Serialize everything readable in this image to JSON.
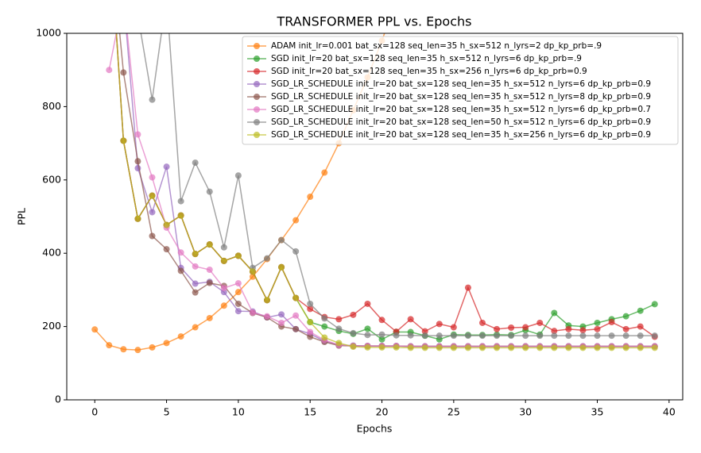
{
  "chart_data": {
    "type": "line",
    "title": "TRANSFORMER PPL vs. Epochs",
    "x_label": "Epochs",
    "y_label": "PPL",
    "x": [
      0,
      1,
      2,
      3,
      4,
      5,
      6,
      7,
      8,
      9,
      10,
      11,
      12,
      13,
      14,
      15,
      16,
      17,
      18,
      19,
      20,
      21,
      22,
      23,
      24,
      25,
      26,
      27,
      28,
      29,
      30,
      31,
      32,
      33,
      34,
      35,
      36,
      37,
      38,
      39
    ],
    "xlim": [
      -1.95,
      40.95
    ],
    "xticks": [
      0,
      5,
      10,
      15,
      20,
      25,
      30,
      35,
      40
    ],
    "ylim": [
      0,
      1000
    ],
    "yticks": [
      0,
      200,
      400,
      600,
      800,
      1000
    ],
    "legend": "upper right",
    "series": [
      {
        "name": "ADAM init_lr=0.001 bat_sx=128 seq_len=35 h_sx=512 n_lyrs=2 dp_kp_prb=.9",
        "color": "#ff7f0e",
        "values": [
          192,
          149,
          138,
          136,
          143,
          155,
          173,
          198,
          223,
          257,
          294,
          336,
          384,
          436,
          490,
          554,
          620,
          700,
          790,
          880,
          980,
          1090,
          null,
          null,
          null,
          null,
          null,
          null,
          null,
          null,
          null,
          null,
          null,
          null,
          null,
          null,
          null,
          null,
          null,
          null
        ]
      },
      {
        "name": "SGD init_lr=20 bat_sx=128 seq_len=35 h_sx=512 n_lyrs=6 dp_kp_prb=.9",
        "color": "#2ca02c",
        "values": [
          null,
          1300,
          707,
          494,
          557,
          477,
          503,
          398,
          424,
          379,
          393,
          350,
          272,
          362,
          278,
          212,
          200,
          188,
          180,
          194,
          165,
          185,
          185,
          175,
          165,
          178,
          177,
          177,
          178,
          177,
          190,
          178,
          237,
          203,
          200,
          210,
          220,
          228,
          243,
          261
        ]
      },
      {
        "name": "SGD init_lr=20 bat_sx=128 seq_len=35 h_sx=256 n_lyrs=6 dp_kp_prb=0.9",
        "color": "#d62728",
        "values": [
          null,
          1300,
          707,
          494,
          557,
          477,
          503,
          398,
          424,
          379,
          393,
          350,
          272,
          362,
          278,
          248,
          226,
          220,
          232,
          262,
          218,
          186,
          220,
          187,
          207,
          198,
          306,
          210,
          193,
          197,
          198,
          210,
          188,
          193,
          190,
          193,
          212,
          193,
          200,
          172
        ]
      },
      {
        "name": "SGD_LR_SCHEDULE init_lr=20 bat_sx=128 seq_len=35 h_sx=512 n_lyrs=6 dp_kp_prb=0.9",
        "color": "#9467bd",
        "values": [
          null,
          1300,
          1100,
          632,
          512,
          636,
          360,
          317,
          322,
          294,
          242,
          241,
          225,
          233,
          193,
          180,
          160,
          150,
          148,
          147,
          147,
          147,
          146,
          146,
          146,
          146,
          146,
          146,
          146,
          146,
          146,
          146,
          146,
          146,
          146,
          146,
          146,
          146,
          146,
          146
        ]
      },
      {
        "name": "SGD_LR_SCHEDULE init_lr=20 bat_sx=128 seq_len=35 h_sx=512 n_lyrs=8 dp_kp_prb=0.9",
        "color": "#8c564b",
        "values": [
          null,
          1300,
          893,
          651,
          447,
          411,
          352,
          293,
          319,
          311,
          262,
          237,
          225,
          200,
          193,
          172,
          158,
          148,
          147,
          147,
          147,
          147,
          146,
          146,
          146,
          146,
          146,
          146,
          146,
          146,
          146,
          146,
          146,
          146,
          146,
          146,
          146,
          146,
          146,
          146
        ]
      },
      {
        "name": "SGD_LR_SCHEDULE init_lr=20 bat_sx=128 seq_len=35 h_sx=512 n_lyrs=6 dp_kp_prb=0.7",
        "color": "#e377c2",
        "values": [
          null,
          900,
          1100,
          724,
          607,
          470,
          402,
          364,
          355,
          305,
          318,
          238,
          228,
          210,
          230,
          185,
          163,
          150,
          147,
          147,
          147,
          147,
          146,
          146,
          146,
          146,
          146,
          146,
          146,
          146,
          146,
          146,
          146,
          146,
          146,
          146,
          146,
          146,
          146,
          146
        ]
      },
      {
        "name": "SGD_LR_SCHEDULE init_lr=20 bat_sx=128 seq_len=50 h_sx=512 n_lyrs=6 dp_kp_prb=0.9",
        "color": "#7f7f7f",
        "values": [
          null,
          null,
          1100,
          1050,
          819,
          1100,
          542,
          647,
          568,
          416,
          612,
          360,
          386,
          436,
          405,
          262,
          222,
          194,
          182,
          177,
          178,
          176,
          176,
          175,
          175,
          175,
          175,
          175,
          175,
          175,
          175,
          175,
          175,
          175,
          175,
          175,
          175,
          175,
          175,
          175
        ]
      },
      {
        "name": "SGD_LR_SCHEDULE init_lr=20 bat_sx=128 seq_len=35 h_sx=256 n_lyrs=6 dp_kp_prb=0.9",
        "color": "#bcbd22",
        "values": [
          null,
          1300,
          707,
          494,
          557,
          477,
          503,
          398,
          424,
          379,
          393,
          350,
          272,
          362,
          278,
          212,
          170,
          155,
          145,
          143,
          143,
          143,
          142,
          142,
          142,
          142,
          142,
          142,
          142,
          142,
          142,
          142,
          142,
          142,
          142,
          142,
          142,
          142,
          142,
          142
        ]
      }
    ]
  }
}
